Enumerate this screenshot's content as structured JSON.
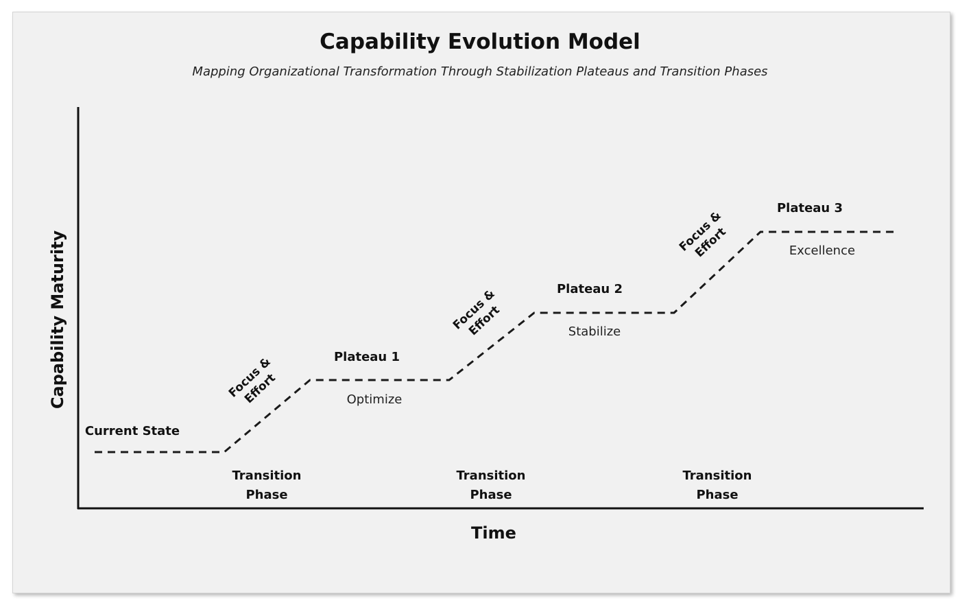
{
  "title": "Capability Evolution Model",
  "subtitle": "Mapping Organizational Transformation Through Stabilization Plateaus and Transition Phases",
  "axes": {
    "y_label": "Capability Maturity",
    "x_label": "Time"
  },
  "stages": [
    {
      "label": "Current State",
      "description": ""
    },
    {
      "label": "Plateau 1",
      "description": "Optimize"
    },
    {
      "label": "Plateau 2",
      "description": "Stabilize"
    },
    {
      "label": "Plateau 3",
      "description": "Excellence"
    }
  ],
  "transitions": [
    {
      "label_line1": "Transition",
      "label_line2": "Phase",
      "effort_line1": "Focus &",
      "effort_line2": "Effort"
    },
    {
      "label_line1": "Transition",
      "label_line2": "Phase",
      "effort_line1": "Focus &",
      "effort_line2": "Effort"
    },
    {
      "label_line1": "Transition",
      "label_line2": "Phase",
      "effort_line1": "Focus &",
      "effort_line2": "Effort"
    }
  ],
  "line_style": "dashed",
  "colors": {
    "background": "#f1f1f1",
    "line": "#1a1a1a",
    "text": "#111111"
  }
}
